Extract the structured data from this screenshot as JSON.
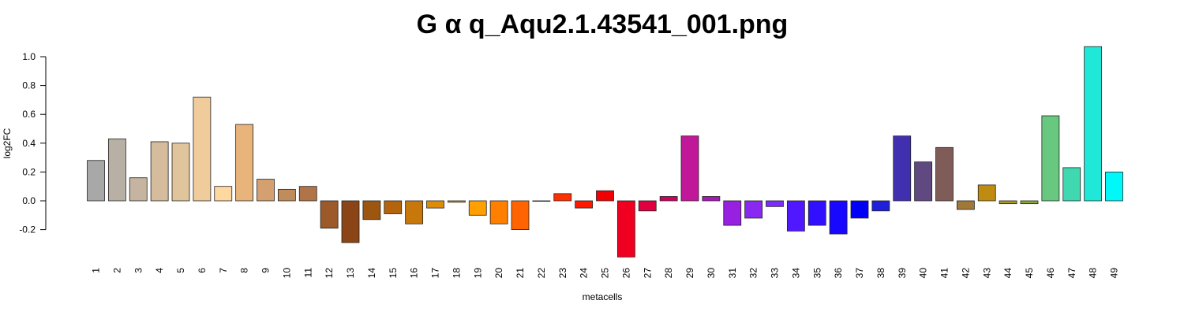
{
  "chart_data": {
    "type": "bar",
    "title": "G α q_Aqu2.1.43541_001.png",
    "xlabel": "metacells",
    "ylabel": "log2FC",
    "ylim": [
      -0.39,
      1.08
    ],
    "y_ticks": [
      "1.0",
      "0.8",
      "0.6",
      "0.4",
      "0.2",
      "0.0",
      "-0.2"
    ],
    "grid": false,
    "categories": [
      "1",
      "2",
      "3",
      "4",
      "5",
      "6",
      "7",
      "8",
      "9",
      "10",
      "11",
      "12",
      "13",
      "14",
      "15",
      "16",
      "17",
      "18",
      "19",
      "20",
      "21",
      "22",
      "23",
      "24",
      "25",
      "26",
      "27",
      "28",
      "29",
      "30",
      "31",
      "32",
      "33",
      "34",
      "35",
      "36",
      "37",
      "38",
      "39",
      "40",
      "41",
      "42",
      "43",
      "44",
      "45",
      "46",
      "47",
      "48",
      "49"
    ],
    "values": [
      0.28,
      0.43,
      0.16,
      0.41,
      0.4,
      0.72,
      0.1,
      0.53,
      0.15,
      0.08,
      0.1,
      -0.19,
      -0.29,
      -0.13,
      -0.09,
      -0.16,
      -0.05,
      -0.01,
      -0.1,
      -0.16,
      -0.2,
      0.0,
      0.05,
      -0.05,
      0.07,
      -0.39,
      -0.07,
      0.03,
      0.45,
      0.03,
      -0.17,
      -0.12,
      -0.04,
      -0.21,
      -0.17,
      -0.23,
      -0.12,
      -0.07,
      0.45,
      0.27,
      0.37,
      -0.06,
      0.11,
      -0.02,
      -0.02,
      0.59,
      0.23,
      1.07,
      0.2
    ],
    "colors": [
      "#a8a8a8",
      "#b8b0a4",
      "#c4b4a0",
      "#d4bc9c",
      "#e0c49c",
      "#f0cc9c",
      "#ffd8a0",
      "#e8b47c",
      "#d4a070",
      "#c08c5c",
      "#b07448",
      "#9c5a2a",
      "#8a4416",
      "#9c5610",
      "#b4640c",
      "#c8780a",
      "#dc8c08",
      "#ec9806",
      "#ffa000",
      "#ff8000",
      "#ff6400",
      "#ff4800",
      "#ff3000",
      "#ff1800",
      "#f00000",
      "#f00020",
      "#e00040",
      "#d00060",
      "#c01898",
      "#a818b8",
      "#9820e0",
      "#8828f0",
      "#7c2cff",
      "#5018ff",
      "#3010ff",
      "#1808ff",
      "#0000f8",
      "#2020d8",
      "#4030b0",
      "#604880",
      "#805c58",
      "#a07838",
      "#c08c10",
      "#a89c20",
      "#88a838",
      "#68c880",
      "#40d8b0",
      "#20e8d8",
      "#00f8f8"
    ]
  }
}
